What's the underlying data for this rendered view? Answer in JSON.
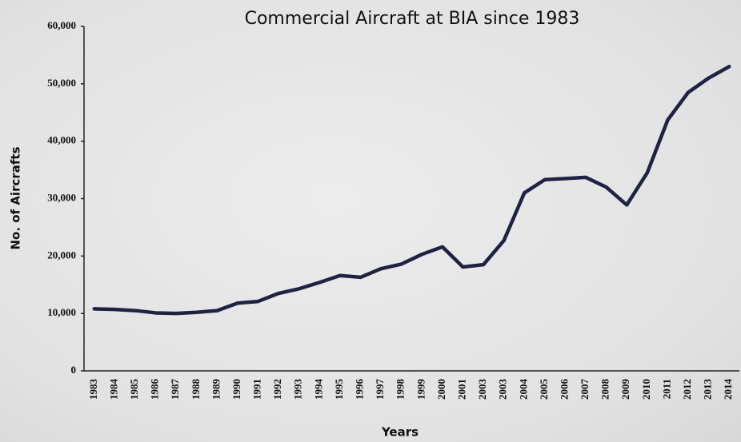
{
  "chart_data": {
    "type": "line",
    "title": "Commercial Aircraft at BIA since 1983",
    "x_label": "Years",
    "y_label": "No. of Aircrafts",
    "categories": [
      "1983",
      "1984",
      "1985",
      "1986",
      "1987",
      "1988",
      "1989",
      "1990",
      "1991",
      "1992",
      "1993",
      "1994",
      "1995",
      "1996",
      "1997",
      "1998",
      "1999",
      "2000",
      "2001",
      "2003",
      "2003",
      "2004",
      "2005",
      "2006",
      "2007",
      "2008",
      "2009",
      "2010",
      "2011",
      "2012",
      "2013",
      "2014"
    ],
    "series": [
      {
        "name": "Commercial Aircraft",
        "color": "#1f2242",
        "values": [
          10800,
          10700,
          10500,
          10100,
          10000,
          10200,
          10500,
          11800,
          12100,
          13500,
          14300,
          15400,
          16600,
          16300,
          17800,
          18600,
          20300,
          21600,
          18100,
          18500,
          22700,
          31000,
          33300,
          33500,
          33700,
          32000,
          28900,
          34500,
          43700,
          48500,
          51000,
          53000
        ]
      }
    ],
    "ylim": [
      0,
      60000
    ],
    "yticks": [
      0,
      {
        "value": 10000,
        "label": "10,000"
      },
      {
        "value": 20000,
        "label": "20,000"
      },
      {
        "value": 30000,
        "label": "30,000"
      },
      {
        "value": 40000,
        "label": "40,000"
      },
      {
        "value": 50000,
        "label": "50,000"
      },
      {
        "value": 60000,
        "label": "60,000"
      }
    ]
  }
}
